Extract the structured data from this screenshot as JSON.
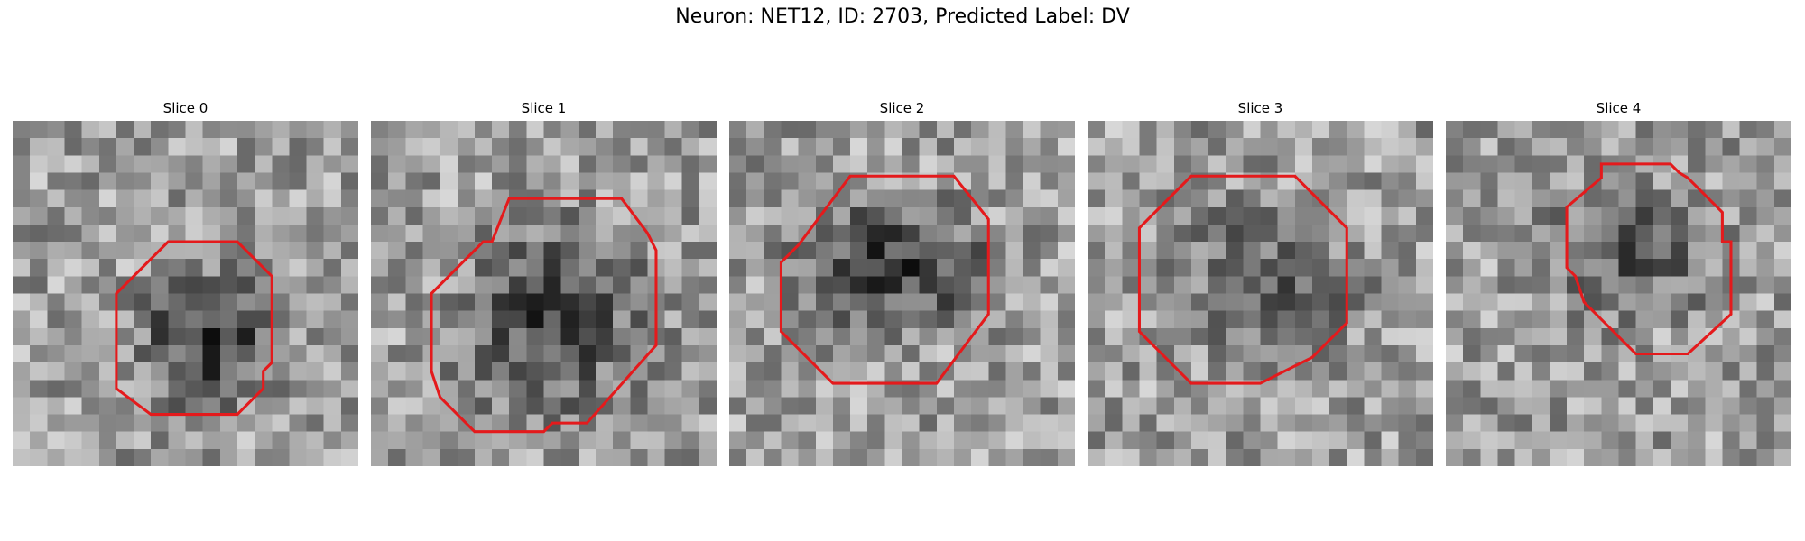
{
  "figure": {
    "title": "Neuron: NET12, ID: 2703, Predicted Label: DV"
  },
  "panels": [
    {
      "title": "Slice 0",
      "seed": 11,
      "contour": [
        [
          10,
          0
        ],
        [
          13,
          0
        ],
        [
          15,
          2
        ],
        [
          15,
          7
        ],
        [
          14.5,
          7.5
        ],
        [
          14.5,
          8.5
        ],
        [
          13,
          10
        ],
        [
          8,
          10
        ],
        [
          6,
          8.5
        ],
        [
          6,
          3
        ],
        [
          9,
          0
        ]
      ]
    },
    {
      "title": "Slice 1",
      "seed": 23,
      "contour": [
        [
          8,
          0
        ],
        [
          14.5,
          0
        ],
        [
          16,
          2
        ],
        [
          16.5,
          3
        ],
        [
          16.5,
          8.5
        ],
        [
          12.5,
          13
        ],
        [
          10.5,
          13
        ],
        [
          10,
          13.5
        ],
        [
          6,
          13.5
        ],
        [
          4,
          11.5
        ],
        [
          3.5,
          10
        ],
        [
          3.5,
          5.5
        ],
        [
          6,
          3
        ],
        [
          6.5,
          2.5
        ],
        [
          7,
          2.5
        ]
      ]
    },
    {
      "title": "Slice 2",
      "seed": 37,
      "contour": [
        [
          7,
          0
        ],
        [
          13,
          0
        ],
        [
          15,
          2.5
        ],
        [
          15,
          8
        ],
        [
          12,
          12
        ],
        [
          6,
          12
        ],
        [
          3,
          9
        ],
        [
          3,
          5
        ],
        [
          4,
          4
        ]
      ]
    },
    {
      "title": "Slice 3",
      "seed": 41,
      "contour": [
        [
          6,
          0
        ],
        [
          12,
          0
        ],
        [
          15,
          3
        ],
        [
          15,
          8.5
        ],
        [
          13,
          10.5
        ],
        [
          12,
          11
        ],
        [
          10,
          12
        ],
        [
          6,
          12
        ],
        [
          3,
          9
        ],
        [
          3,
          3
        ],
        [
          4.5,
          1.5
        ]
      ]
    },
    {
      "title": "Slice 4",
      "seed": 53,
      "contour": [
        [
          9,
          0
        ],
        [
          13,
          0
        ],
        [
          13.5,
          0.5
        ],
        [
          14,
          0.8
        ],
        [
          16,
          2.8
        ],
        [
          16,
          4.5
        ],
        [
          16.5,
          4.5
        ],
        [
          16.5,
          8.7
        ],
        [
          14,
          11
        ],
        [
          11,
          11
        ],
        [
          8,
          8
        ],
        [
          7.5,
          6.5
        ],
        [
          7,
          6
        ],
        [
          7,
          2.5
        ],
        [
          9,
          0.8
        ]
      ]
    }
  ],
  "colors": {
    "contour": "#e41a1c"
  }
}
